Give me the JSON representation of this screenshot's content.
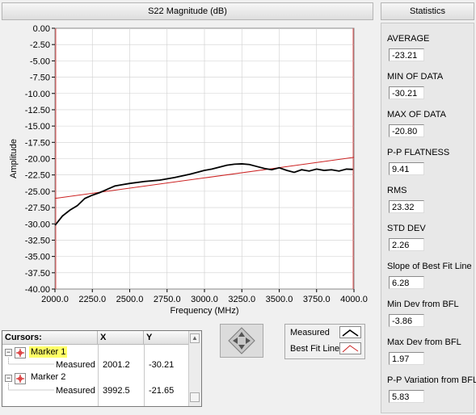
{
  "chart": {
    "header": "S22 Magnitude (dB)",
    "colors": {
      "measured": "#000000",
      "best_fit": "#cc2222",
      "plot_bg": "#ffffff",
      "grid": "#cfcfcf",
      "cursor_line": "#e05050"
    }
  },
  "chart_data": {
    "type": "line",
    "title": "",
    "xlabel": "Frequency (MHz)",
    "ylabel": "Amplitude",
    "xlim": [
      2000,
      4000
    ],
    "ylim": [
      -40,
      0
    ],
    "x_ticks": [
      "2000.0",
      "2250.0",
      "2500.0",
      "2750.0",
      "3000.0",
      "3250.0",
      "3500.0",
      "3750.0",
      "4000.0"
    ],
    "y_ticks": [
      "0.00",
      "-2.50",
      "-5.00",
      "-7.50",
      "-10.00",
      "-12.50",
      "-15.00",
      "-17.50",
      "-20.00",
      "-22.50",
      "-25.00",
      "-27.50",
      "-30.00",
      "-32.50",
      "-35.00",
      "-37.50",
      "-40.00"
    ],
    "grid": true,
    "series": [
      {
        "name": "Measured",
        "x": [
          2001.2,
          2050,
          2100,
          2150,
          2200,
          2250,
          2300,
          2350,
          2400,
          2450,
          2500,
          2600,
          2700,
          2800,
          2900,
          2950,
          3000,
          3050,
          3100,
          3150,
          3200,
          3250,
          3300,
          3350,
          3400,
          3450,
          3500,
          3550,
          3600,
          3650,
          3700,
          3750,
          3800,
          3850,
          3900,
          3950,
          3992.5
        ],
        "y": [
          -30.21,
          -28.8,
          -27.9,
          -27.2,
          -26.1,
          -25.6,
          -25.2,
          -24.7,
          -24.2,
          -24.0,
          -23.8,
          -23.5,
          -23.3,
          -22.9,
          -22.4,
          -22.1,
          -21.8,
          -21.6,
          -21.3,
          -21.0,
          -20.85,
          -20.8,
          -20.9,
          -21.2,
          -21.5,
          -21.7,
          -21.4,
          -21.8,
          -22.1,
          -21.7,
          -21.9,
          -21.6,
          -21.8,
          -21.7,
          -21.9,
          -21.6,
          -21.65
        ]
      },
      {
        "name": "Best Fit Line",
        "x": [
          2000,
          4000
        ],
        "y": [
          -26.1,
          -19.8
        ]
      }
    ]
  },
  "legend": {
    "items": [
      {
        "label": "Measured"
      },
      {
        "label": "Best Fit Line"
      }
    ]
  },
  "cursor_table": {
    "headers": {
      "name": "Cursors:",
      "x": "X",
      "y": "Y"
    },
    "rows": [
      {
        "marker": "Marker 1",
        "sub": "Measured",
        "x": "2001.2",
        "y": "-30.21",
        "highlight": "#ffff66"
      },
      {
        "marker": "Marker 2",
        "sub": "Measured",
        "x": "3992.5",
        "y": "-21.65"
      }
    ]
  },
  "stats": {
    "header": "Statistics",
    "items": [
      {
        "label": "AVERAGE",
        "value": "-23.21"
      },
      {
        "label": "MIN OF DATA",
        "value": "-30.21"
      },
      {
        "label": "MAX OF DATA",
        "value": "-20.80"
      },
      {
        "label": "P-P FLATNESS",
        "value": "9.41"
      },
      {
        "label": "RMS",
        "value": "23.32"
      },
      {
        "label": "STD DEV",
        "value": "2.26"
      },
      {
        "label": "Slope of Best Fit Line",
        "value": "6.28"
      },
      {
        "label": "Min Dev from BFL",
        "value": "-3.86"
      },
      {
        "label": "Max Dev from BFL",
        "value": "1.97"
      },
      {
        "label": "P-P Variation from BFL",
        "value": "5.83"
      }
    ]
  }
}
